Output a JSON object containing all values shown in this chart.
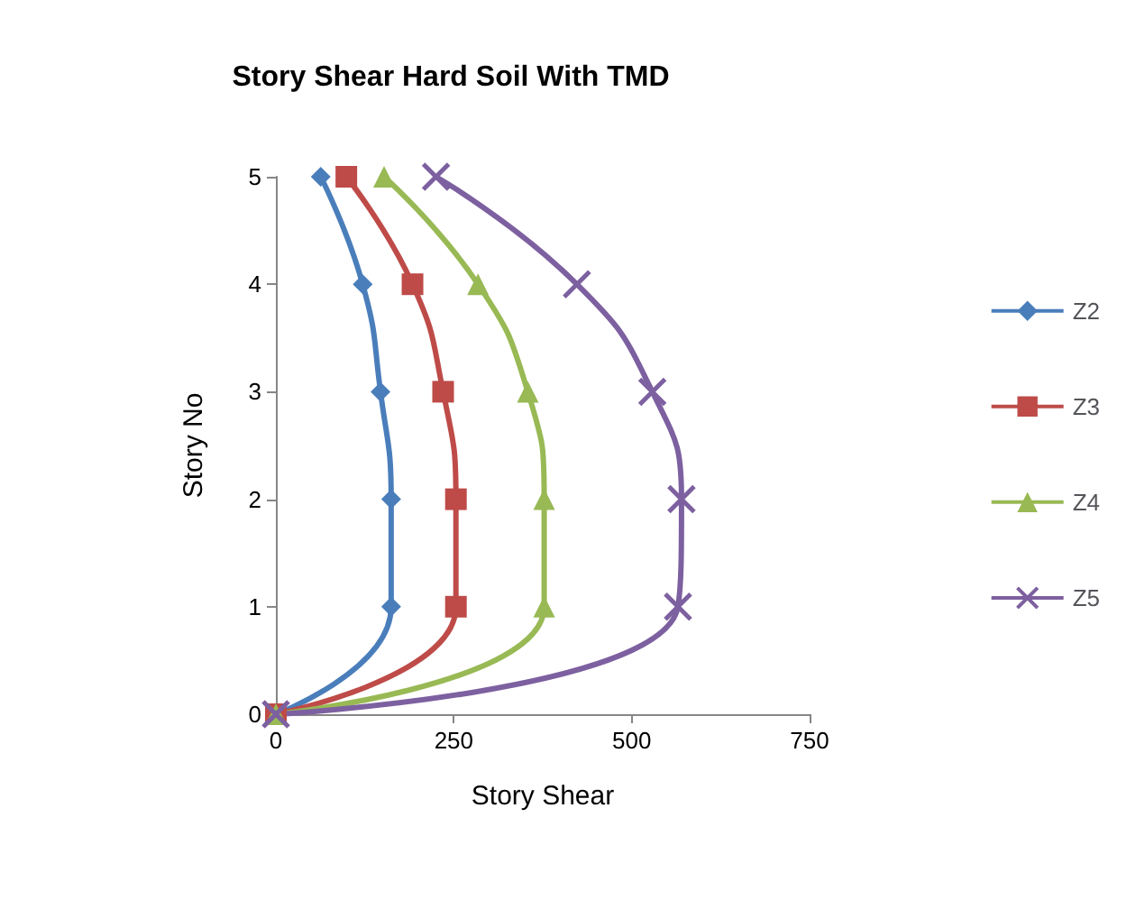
{
  "chart_data": {
    "type": "line",
    "title": "Story Shear Hard Soil With TMD",
    "xlabel": "Story Shear",
    "ylabel": "Story No",
    "series": [
      {
        "name": "Z2",
        "color": "#4a7ebb",
        "marker": "diamond",
        "x": [
          0,
          162,
          162,
          147,
          122,
          63
        ],
        "values": [
          0,
          1,
          2,
          3,
          4,
          5
        ]
      },
      {
        "name": "Z3",
        "color": "#be4b48",
        "marker": "square",
        "x": [
          0,
          253,
          253,
          235,
          192,
          99
        ],
        "values": [
          0,
          1,
          2,
          3,
          4,
          5
        ]
      },
      {
        "name": "Z4",
        "color": "#98b954",
        "marker": "triangle",
        "x": [
          0,
          377,
          377,
          354,
          284,
          152
        ],
        "values": [
          0,
          1,
          2,
          3,
          4,
          5
        ]
      },
      {
        "name": "Z5",
        "color": "#7d60a0",
        "marker": "cross",
        "x": [
          0,
          565,
          570,
          529,
          423,
          225
        ],
        "values": [
          0,
          1,
          2,
          3,
          4,
          5
        ]
      }
    ],
    "xlim": [
      0,
      750
    ],
    "xticks": [
      0,
      250,
      500,
      750
    ],
    "ylim": [
      0,
      5
    ],
    "yticks": [
      0,
      1,
      2,
      3,
      4,
      5
    ],
    "grid": false,
    "legend": "right"
  }
}
